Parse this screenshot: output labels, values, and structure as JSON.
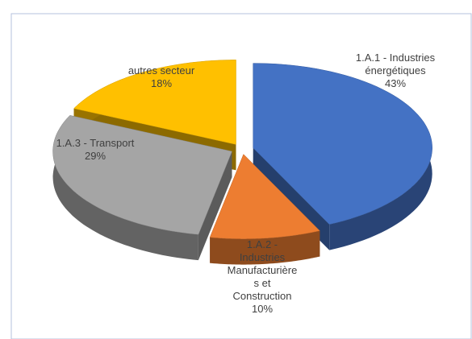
{
  "chart_data": {
    "type": "pie",
    "categories": [
      "1.A.1 - Industries énergétiques",
      "1.A.2 - Industries Manufacturières et Construction",
      "1.A.3 - Transport",
      "autres secteur"
    ],
    "values": [
      43,
      10,
      29,
      18
    ],
    "value_labels": [
      "43%",
      "10%",
      "29%",
      "18%"
    ],
    "colors": [
      "#4472c4",
      "#ed7d31",
      "#a5a5a5",
      "#ffc000"
    ]
  }
}
